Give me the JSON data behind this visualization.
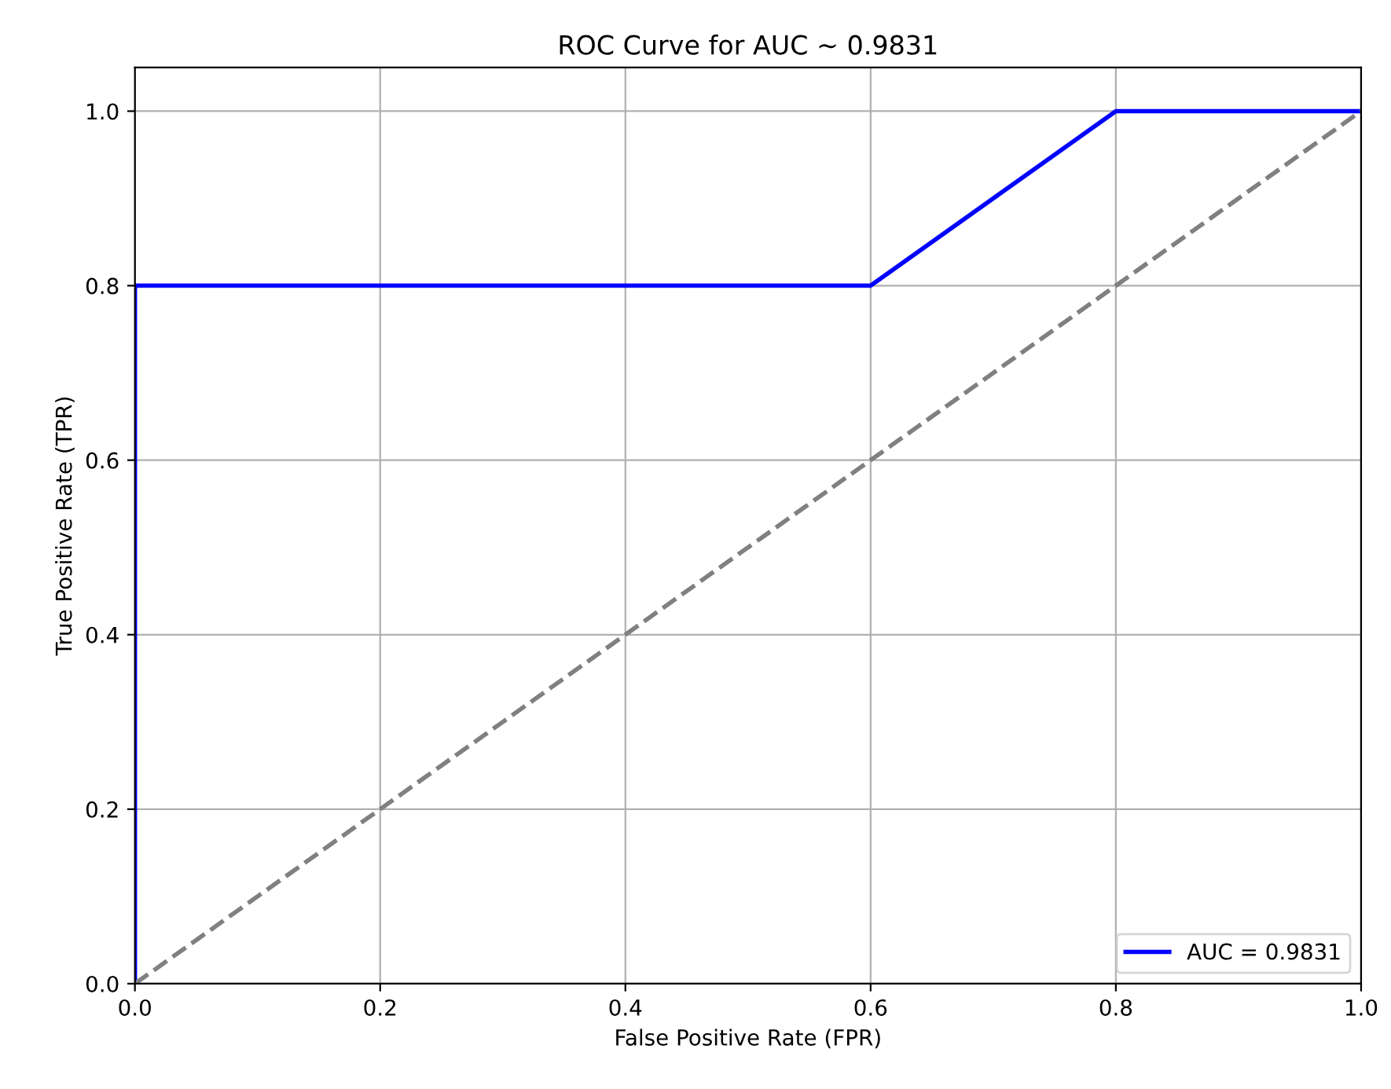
{
  "chart_data": {
    "type": "line",
    "title": "ROC Curve for AUC ~ 0.9831",
    "xlabel": "False Positive Rate (FPR)",
    "ylabel": "True Positive Rate (TPR)",
    "series": [
      {
        "name": "AUC = 0.9831",
        "color": "#0000ff",
        "x": [
          0,
          0,
          0.6,
          0.8,
          1.0
        ],
        "values": [
          0,
          0.8,
          0.8,
          1.0,
          1.0
        ],
        "line_style": "solid"
      },
      {
        "color": "#808080",
        "x": [
          0,
          1.0
        ],
        "values": [
          0,
          1.0
        ],
        "line_style": "dashed"
      }
    ],
    "xlim": [
      0,
      1.0
    ],
    "ylim": [
      0,
      1.05
    ],
    "xticks": [
      {
        "value": 0,
        "label": "0.0"
      },
      0.2,
      0.4,
      0.6,
      0.8,
      {
        "value": 1,
        "label": "1.0"
      }
    ],
    "yticks": [
      {
        "value": 0,
        "label": "0.0"
      },
      0.2,
      0.4,
      0.6,
      0.8,
      {
        "value": 1,
        "label": "1.0"
      }
    ],
    "grid": true,
    "legend": "bottom right",
    "marker": "none"
  }
}
